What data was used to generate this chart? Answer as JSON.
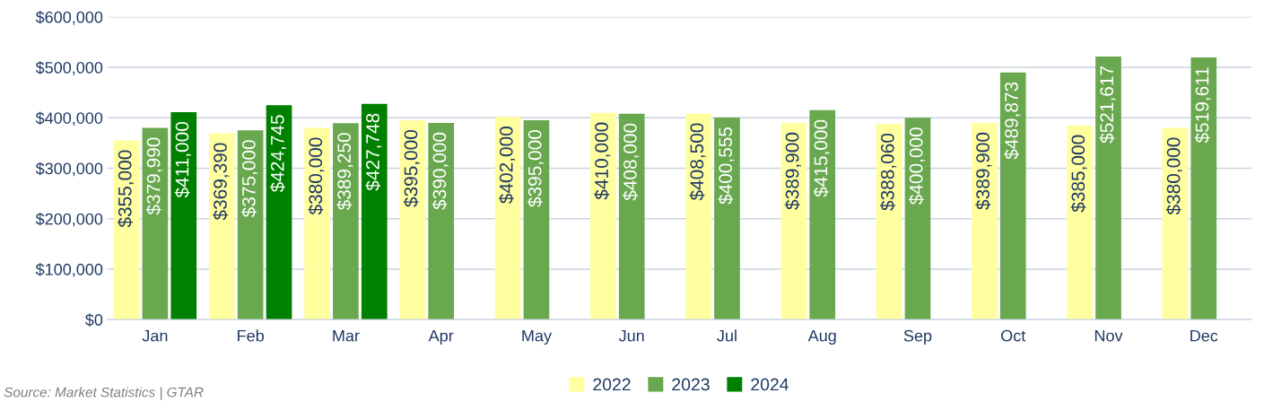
{
  "chart_data": {
    "type": "bar",
    "categories": [
      "Jan",
      "Feb",
      "Mar",
      "Apr",
      "May",
      "Jun",
      "Jul",
      "Aug",
      "Sep",
      "Oct",
      "Nov",
      "Dec"
    ],
    "series": [
      {
        "name": "2022",
        "color": "#ffff9f",
        "values": [
          355000,
          369390,
          380000,
          395000,
          402000,
          410000,
          408500,
          389900,
          388060,
          389900,
          385000,
          380000
        ],
        "value_labels": [
          "$355,000",
          "$369,390",
          "$380,000",
          "$395,000",
          "$402,000",
          "$410,000",
          "$408,500",
          "$389,900",
          "$388,060",
          "$389,900",
          "$385,000",
          "$380,000"
        ]
      },
      {
        "name": "2023",
        "color": "#6aa84f",
        "values": [
          379990,
          375000,
          389250,
          390000,
          395000,
          408000,
          400555,
          415000,
          400000,
          489873,
          521617,
          519611
        ],
        "value_labels": [
          "$379,990",
          "$375,000",
          "$389,250",
          "$390,000",
          "$395,000",
          "$408,000",
          "$400,555",
          "$415,000",
          "$400,000",
          "$489,873",
          "$521,617",
          "$519,611"
        ]
      },
      {
        "name": "2024",
        "color": "#008000",
        "values": [
          411000,
          424745,
          427748,
          null,
          null,
          null,
          null,
          null,
          null,
          null,
          null,
          null
        ],
        "value_labels": [
          "$411,000",
          "$424,745",
          "$427,748",
          null,
          null,
          null,
          null,
          null,
          null,
          null,
          null,
          null
        ]
      }
    ],
    "ylim": [
      0,
      600000
    ],
    "yticks": [
      {
        "value": 0,
        "label": "$0"
      },
      {
        "value": 100000,
        "label": "$100,000"
      },
      {
        "value": 200000,
        "label": "$200,000"
      },
      {
        "value": 300000,
        "label": "$300,000"
      },
      {
        "value": 400000,
        "label": "$400,000"
      },
      {
        "value": 500000,
        "label": "$500,000"
      },
      {
        "value": 600000,
        "label": "$600,000"
      }
    ],
    "grid": "y",
    "legend": "bottom",
    "annotations": [
      "Source: Market Statistics | GTAR"
    ]
  }
}
